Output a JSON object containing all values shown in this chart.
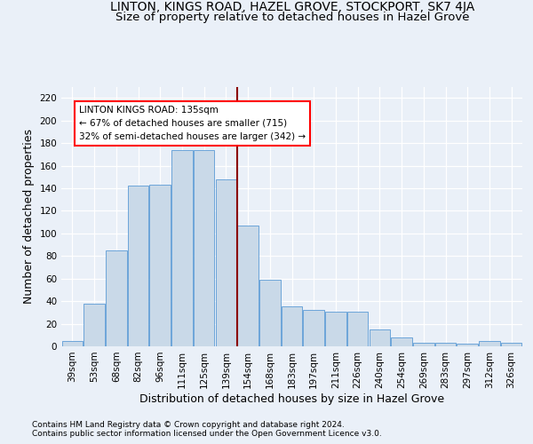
{
  "title_line1": "LINTON, KINGS ROAD, HAZEL GROVE, STOCKPORT, SK7 4JA",
  "title_line2": "Size of property relative to detached houses in Hazel Grove",
  "xlabel": "Distribution of detached houses by size in Hazel Grove",
  "ylabel": "Number of detached properties",
  "footer_line1": "Contains HM Land Registry data © Crown copyright and database right 2024.",
  "footer_line2": "Contains public sector information licensed under the Open Government Licence v3.0.",
  "annotation_line1": "LINTON KINGS ROAD: 135sqm",
  "annotation_line2": "← 67% of detached houses are smaller (715)",
  "annotation_line3": "32% of semi-detached houses are larger (342) →",
  "bar_color": "#c9d9e8",
  "bar_edge_color": "#5b9bd5",
  "vline_color": "#8b0000",
  "vline_x": 7.5,
  "categories": [
    "39sqm",
    "53sqm",
    "68sqm",
    "82sqm",
    "96sqm",
    "111sqm",
    "125sqm",
    "139sqm",
    "154sqm",
    "168sqm",
    "183sqm",
    "197sqm",
    "211sqm",
    "226sqm",
    "240sqm",
    "254sqm",
    "269sqm",
    "283sqm",
    "297sqm",
    "312sqm",
    "326sqm"
  ],
  "values": [
    5,
    38,
    85,
    142,
    143,
    174,
    174,
    148,
    107,
    59,
    35,
    32,
    31,
    31,
    15,
    8,
    3,
    3,
    2,
    5,
    3
  ],
  "ylim": [
    0,
    230
  ],
  "yticks": [
    0,
    20,
    40,
    60,
    80,
    100,
    120,
    140,
    160,
    180,
    200,
    220
  ],
  "bg_color": "#eaf0f8",
  "plot_bg_color": "#eaf0f8",
  "grid_color": "#ffffff",
  "title_fontsize": 10,
  "subtitle_fontsize": 9.5,
  "axis_label_fontsize": 9,
  "tick_fontsize": 7.5,
  "footer_fontsize": 6.5
}
